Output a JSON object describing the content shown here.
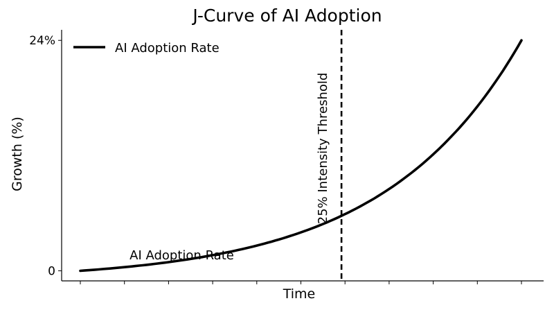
{
  "chart_data": {
    "type": "line",
    "title": "J-Curve of AI Adoption",
    "xlabel": "Time",
    "ylabel": "Growth (%)",
    "y_tick_labels": [
      "0",
      "24%"
    ],
    "y_ticks": [
      0,
      24
    ],
    "ylim": [
      -1.05,
      25.1
    ],
    "x_tick_count": 11,
    "grid": false,
    "legend": {
      "placement": "top-left",
      "entries": [
        "AI Adoption Rate"
      ]
    },
    "series": [
      {
        "name": "AI Adoption Rate",
        "color": "#000000",
        "curve": "exponential",
        "x": [
          0,
          1,
          2,
          3,
          4,
          5,
          6,
          6.5,
          7,
          7.5,
          8,
          8.5,
          9,
          9.5,
          10
        ],
        "y": [
          0,
          0.01,
          0.03,
          0.08,
          0.2,
          0.6,
          1.5,
          2.4,
          3.6,
          5.3,
          7.6,
          10.6,
          14.4,
          18.9,
          24
        ]
      }
    ],
    "annotations": {
      "threshold": {
        "label": "25% Intensity Threshold",
        "x": 5.92,
        "style": "dashed"
      },
      "curve_label": {
        "text": "AI Adoption Rate",
        "x": 2.3,
        "y": 0.6
      }
    }
  }
}
